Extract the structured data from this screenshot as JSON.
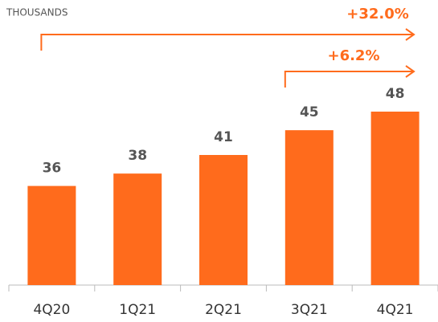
{
  "chart_data": {
    "type": "bar",
    "subtitle": "THOUSANDS",
    "categories": [
      "4Q20",
      "1Q21",
      "2Q21",
      "3Q21",
      "4Q21"
    ],
    "values": [
      36,
      38,
      41,
      45,
      48
    ],
    "color": "#ff6b1c",
    "ylim": [
      20,
      48
    ],
    "annotations": [
      "+32.0%",
      "+6.2%"
    ]
  }
}
